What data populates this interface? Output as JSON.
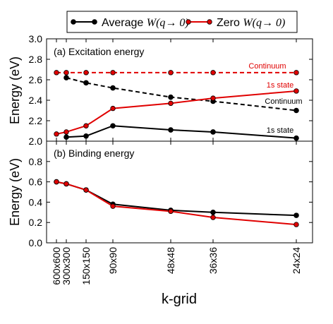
{
  "legend": {
    "entries": [
      {
        "label_prefix": "Average ",
        "label_math": "W(q→ 0)",
        "color": "#000000"
      },
      {
        "label_prefix": "Zero ",
        "label_math": "W(q→ 0)",
        "color": "#e00000"
      }
    ]
  },
  "chart_data": [
    {
      "type": "line",
      "title": "(a) Excitation energy",
      "ylabel": "Energy (eV)",
      "ylim": [
        2.0,
        3.0
      ],
      "yticks": [
        "2.0",
        "2.2",
        "2.4",
        "2.6",
        "2.8",
        "3.0"
      ],
      "x": [
        "600x600",
        "300x300",
        "150x150",
        "90x90",
        "48x48",
        "36x36",
        "24x24"
      ],
      "series": [
        {
          "name": "1s state",
          "color": "#000000",
          "style": "solid",
          "values": [
            null,
            2.04,
            2.05,
            2.15,
            2.11,
            2.09,
            2.03
          ]
        },
        {
          "name": "Continuum",
          "color": "#000000",
          "style": "dashed",
          "values": [
            null,
            2.62,
            2.57,
            2.52,
            2.43,
            2.39,
            2.3
          ]
        },
        {
          "name": "1s state",
          "color": "#e00000",
          "style": "solid",
          "values": [
            2.07,
            2.09,
            2.15,
            2.32,
            2.37,
            2.42,
            2.49
          ]
        },
        {
          "name": "Continuum",
          "color": "#e00000",
          "style": "dashed",
          "values": [
            2.67,
            2.67,
            2.67,
            2.67,
            2.67,
            2.67,
            2.67
          ]
        }
      ]
    },
    {
      "type": "line",
      "title": "(b) Binding energy",
      "ylabel": "Energy (eV)",
      "xlabel": "k-grid",
      "ylim": [
        0.0,
        1.0
      ],
      "yticks": [
        "0.0",
        "0.2",
        "0.4",
        "0.6",
        "0.8"
      ],
      "x": [
        "600x600",
        "300x300",
        "150x150",
        "90x90",
        "48x48",
        "36x36",
        "24x24"
      ],
      "series": [
        {
          "color": "#000000",
          "style": "solid",
          "values": [
            0.6,
            0.58,
            0.52,
            0.38,
            0.32,
            0.3,
            0.27
          ]
        },
        {
          "color": "#e00000",
          "style": "solid",
          "values": [
            0.6,
            0.58,
            0.52,
            0.36,
            0.31,
            0.25,
            0.18
          ]
        }
      ]
    }
  ]
}
